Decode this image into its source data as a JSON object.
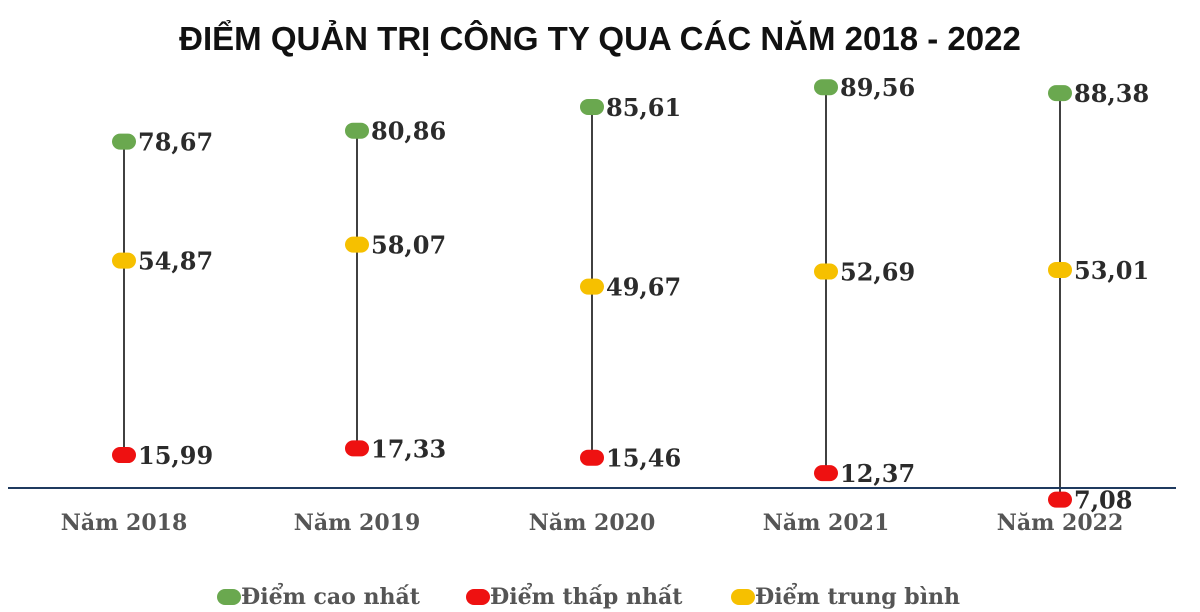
{
  "chart_data": {
    "type": "scatter",
    "title": "ĐIỂM QUẢN TRỊ CÔNG TY QUA CÁC NĂM 2018 - 2022",
    "categories": [
      "Năm 2018",
      "Năm 2019",
      "Năm 2020",
      "Năm 2021",
      "Năm 2022"
    ],
    "series": [
      {
        "name": "Điểm cao nhất",
        "values": [
          78.67,
          80.86,
          85.61,
          89.56,
          88.38
        ],
        "labels": [
          "78,67",
          "80,86",
          "85,61",
          "89,56",
          "88,38"
        ],
        "color": "#6aa84f"
      },
      {
        "name": "Điểm thấp nhất",
        "values": [
          15.99,
          17.33,
          15.46,
          12.37,
          7.08
        ],
        "labels": [
          "15,99",
          "17,33",
          "15,46",
          "12,37",
          "7,08"
        ],
        "color": "#ee1111"
      },
      {
        "name": "Điểm trung bình",
        "values": [
          54.87,
          58.07,
          49.67,
          52.69,
          53.01
        ],
        "labels": [
          "54,87",
          "58,07",
          "49,67",
          "52,69",
          "53,01"
        ],
        "color": "#f6c000"
      }
    ],
    "legend": "bottom",
    "grid": false
  }
}
